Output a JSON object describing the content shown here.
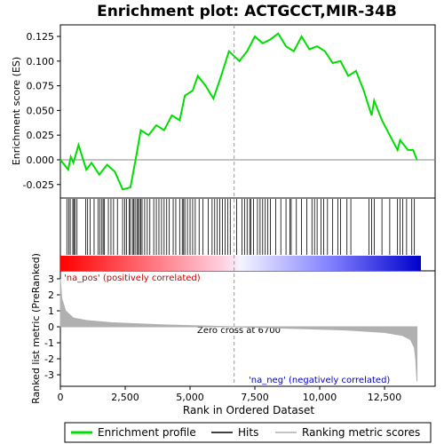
{
  "chart_data": [
    {
      "type": "line",
      "title": "Enrichment plot: ACTGCCT,MIR-34B",
      "ylabel": "Enrichment score (ES)",
      "x": [
        0,
        300,
        400,
        500,
        700,
        1000,
        1200,
        1500,
        1800,
        2100,
        2400,
        2700,
        2900,
        3100,
        3400,
        3700,
        4000,
        4300,
        4600,
        4800,
        5100,
        5300,
        5600,
        5900,
        6200,
        6500,
        6900,
        7200,
        7500,
        7800,
        8100,
        8400,
        8700,
        9000,
        9300,
        9600,
        9900,
        10200,
        10500,
        10800,
        11100,
        11400,
        11700,
        12000,
        12100,
        12400,
        12700,
        13000,
        13100,
        13400,
        13600,
        13750
      ],
      "series": [
        {
          "name": "Enrichment profile",
          "color": "#00dd00",
          "values": [
            0,
            -0.01,
            0.003,
            -0.003,
            0.015,
            -0.01,
            -0.003,
            -0.015,
            -0.005,
            -0.012,
            -0.03,
            -0.028,
            0.0,
            0.03,
            0.025,
            0.035,
            0.03,
            0.045,
            0.04,
            0.065,
            0.07,
            0.085,
            0.075,
            0.062,
            0.085,
            0.11,
            0.1,
            0.11,
            0.125,
            0.118,
            0.122,
            0.128,
            0.115,
            0.11,
            0.125,
            0.112,
            0.115,
            0.11,
            0.098,
            0.1,
            0.085,
            0.09,
            0.07,
            0.045,
            0.06,
            0.04,
            0.025,
            0.01,
            0.02,
            0.01,
            0.01,
            0
          ]
        }
      ],
      "xlim": [
        0,
        14450
      ],
      "ylim": [
        -0.0387,
        0.1367
      ],
      "yticks": [
        {
          "value": -0.025,
          "label": "-0.025"
        },
        {
          "value": 0,
          "label": "0.000"
        },
        {
          "value": 0.025,
          "label": "0.025"
        },
        {
          "value": 0.05,
          "label": "0.050"
        },
        {
          "value": 0.075,
          "label": "0.075"
        },
        {
          "value": 0.1,
          "label": "0.100"
        },
        {
          "value": 0.125,
          "label": "0.125"
        }
      ]
    },
    {
      "type": "hits",
      "series": [
        {
          "name": "Hits",
          "color": "#000000",
          "x": [
            250,
            320,
            380,
            480,
            520,
            560,
            640,
            980,
            1050,
            1150,
            1300,
            1450,
            1520,
            1600,
            1650,
            1700,
            1850,
            1950,
            2050,
            2200,
            2400,
            2480,
            2550,
            2650,
            2700,
            2780,
            2830,
            2880,
            2950,
            3000,
            3050,
            3100,
            3150,
            3250,
            3350,
            3450,
            3600,
            3700,
            3800,
            3900,
            4000,
            4100,
            4200,
            4350,
            4450,
            4600,
            4700,
            4750,
            4800,
            4900,
            5000,
            5100,
            5200,
            5350,
            5500,
            5700,
            5850,
            5950,
            6050,
            6150,
            6250,
            6350,
            6450,
            6550,
            6800,
            7000,
            7100,
            7200,
            7300,
            7350,
            7450,
            7600,
            7700,
            7800,
            7900,
            8000,
            8100,
            8300,
            8500,
            8700,
            8850,
            8900,
            9100,
            9300,
            9500,
            9700,
            9800,
            9900,
            10050,
            10150,
            10300,
            10500,
            10700,
            10800,
            11050,
            11200,
            11900,
            12000,
            12100,
            12400,
            12700,
            13000,
            13100,
            13200,
            13350,
            13550,
            13650
          ]
        }
      ],
      "xlim": [
        0,
        14450
      ]
    },
    {
      "type": "area",
      "ylabel": "Ranked list metric (PreRanked)",
      "xlabel": "Rank in Ordered Dataset",
      "x": [
        0,
        50,
        200,
        500,
        1000,
        2000,
        4000,
        6700,
        9000,
        11000,
        12500,
        13200,
        13500,
        13650,
        13700,
        13750
      ],
      "series": [
        {
          "name": "Ranking metric scores",
          "color": "#b0b0b0",
          "values": [
            3.0,
            1.8,
            1.0,
            0.55,
            0.4,
            0.25,
            0.12,
            0,
            -0.1,
            -0.2,
            -0.35,
            -0.55,
            -0.8,
            -1.3,
            -2.0,
            -3.4
          ]
        }
      ],
      "xlim": [
        0,
        14450
      ],
      "ylim": [
        -3.72,
        3.5
      ],
      "yticks": [
        -3,
        -2,
        -1,
        0,
        1,
        2,
        3
      ],
      "xticks": [
        0,
        {
          "value": 2500,
          "label": "2,500"
        },
        {
          "value": 5000,
          "label": "5,000"
        },
        {
          "value": 7500,
          "label": "7,500"
        },
        {
          "value": 10000,
          "label": "10,000"
        },
        {
          "value": 12500,
          "label": "12,500"
        }
      ],
      "zero_cross": 6700,
      "zero_label": "Zero cross at 6700",
      "pos_label": "'na_pos' (positively correlated)",
      "neg_label": "'na_neg' (negatively correlated)"
    }
  ]
}
